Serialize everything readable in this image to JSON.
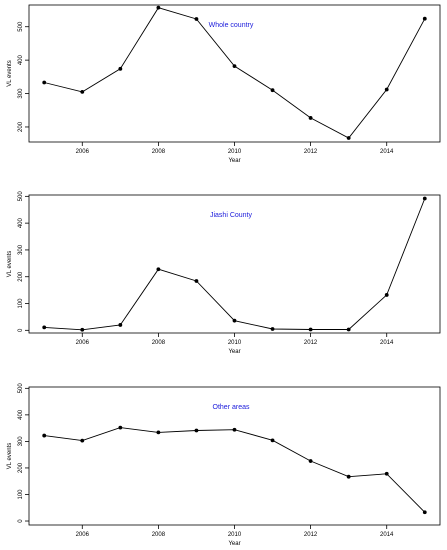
{
  "chart_data": [
    {
      "type": "line",
      "title": "Whole country",
      "xlabel": "Year",
      "ylabel": "VL events",
      "x": [
        2005,
        2006,
        2007,
        2008,
        2009,
        2010,
        2011,
        2012,
        2013,
        2014,
        2015
      ],
      "series": [
        {
          "values": [
            333,
            305,
            374,
            557,
            523,
            382,
            310,
            227,
            167,
            312,
            524
          ]
        }
      ],
      "xlim": [
        2004.6,
        2015.4
      ],
      "ylim": [
        155,
        565
      ],
      "xticks": [
        2006,
        2008,
        2010,
        2012,
        2014
      ],
      "yticks": [
        200,
        300,
        400,
        500
      ],
      "grid": false,
      "title_color": "#1a1adb"
    },
    {
      "type": "line",
      "title": "Jiashi County",
      "xlabel": "Year",
      "ylabel": "VL events",
      "x": [
        2005,
        2006,
        2007,
        2008,
        2009,
        2010,
        2011,
        2012,
        2013,
        2014,
        2015
      ],
      "series": [
        {
          "values": [
            11,
            2,
            20,
            228,
            184,
            36,
            5,
            3,
            3,
            132,
            492
          ]
        }
      ],
      "xlim": [
        2004.6,
        2015.4
      ],
      "ylim": [
        -10,
        505
      ],
      "xticks": [
        2006,
        2008,
        2010,
        2012,
        2014
      ],
      "yticks": [
        0,
        100,
        200,
        300,
        400,
        500
      ],
      "grid": false,
      "title_color": "#1a1adb"
    },
    {
      "type": "line",
      "title": "Other areas",
      "xlabel": "Year",
      "ylabel": "VL events",
      "x": [
        2005,
        2006,
        2007,
        2008,
        2009,
        2010,
        2011,
        2012,
        2013,
        2014,
        2015
      ],
      "series": [
        {
          "values": [
            322,
            303,
            352,
            334,
            341,
            344,
            304,
            226,
            167,
            178,
            33
          ]
        }
      ],
      "xlim": [
        2004.6,
        2015.4
      ],
      "ylim": [
        -15,
        505
      ],
      "xticks": [
        2006,
        2008,
        2010,
        2012,
        2014
      ],
      "yticks": [
        0,
        100,
        200,
        300,
        400,
        500
      ],
      "grid": false,
      "title_color": "#1a1adb"
    }
  ]
}
